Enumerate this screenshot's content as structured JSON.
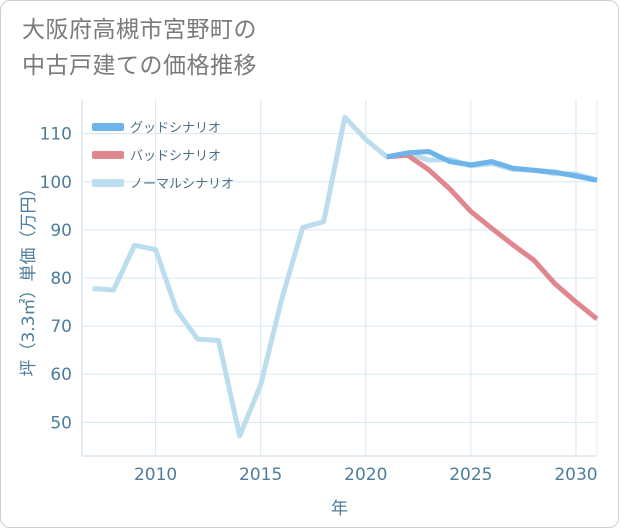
{
  "title": {
    "line1": "大阪府高槻市宮野町の",
    "line2": "中古戸建ての価格推移"
  },
  "chart_data": {
    "type": "line",
    "xlabel": "年",
    "ylabel": "坪（3.3㎡）単価（万円）",
    "xlim": [
      2006.5,
      2031
    ],
    "ylim": [
      43,
      117
    ],
    "x_ticks": [
      2010,
      2015,
      2020,
      2025,
      2030
    ],
    "y_ticks": [
      50,
      60,
      70,
      80,
      90,
      100,
      110
    ],
    "grid": true,
    "legend_position": "top-left",
    "series": [
      {
        "name": "グッドシナリオ",
        "color": "#6cb4ea",
        "x": [
          2021,
          2022,
          2023,
          2024,
          2025,
          2026,
          2027,
          2028,
          2029,
          2030,
          2031
        ],
        "values": [
          105.2,
          106.0,
          106.3,
          104.2,
          103.5,
          104.2,
          102.8,
          102.4,
          102.0,
          101.2,
          100.3
        ]
      },
      {
        "name": "バッドシナリオ",
        "color": "#e0868e",
        "x": [
          2021,
          2022,
          2023,
          2024,
          2025,
          2026,
          2027,
          2028,
          2029,
          2030,
          2031
        ],
        "values": [
          105.2,
          105.5,
          102.5,
          98.5,
          93.8,
          90.3,
          86.9,
          83.7,
          78.8,
          75.0,
          71.5
        ]
      },
      {
        "name": "ノーマルシナリオ",
        "color": "#bbdded",
        "x": [
          2007,
          2008,
          2009,
          2010,
          2011,
          2012,
          2013,
          2014,
          2015,
          2016,
          2017,
          2018,
          2019,
          2020,
          2021,
          2022,
          2023,
          2024,
          2025,
          2026,
          2027,
          2028,
          2029,
          2030,
          2031
        ],
        "values": [
          77.8,
          77.5,
          86.8,
          85.9,
          73.3,
          67.3,
          67.0,
          47.2,
          57.8,
          75.6,
          90.5,
          91.7,
          113.4,
          108.8,
          105.2,
          106.0,
          104.5,
          104.7,
          103.3,
          103.8,
          102.6,
          102.4,
          101.7,
          101.6,
          100.4
        ]
      }
    ]
  }
}
